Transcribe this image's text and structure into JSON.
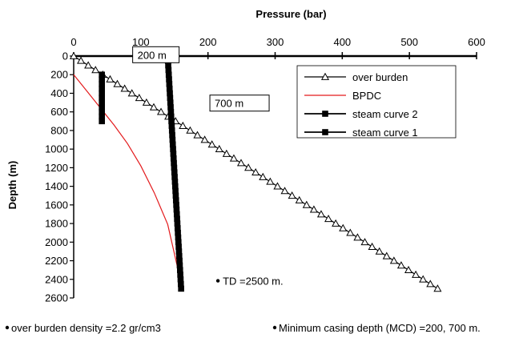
{
  "chart_data": {
    "type": "line",
    "xlabel": "Pressure (bar)",
    "ylabel": "Depth (m)",
    "x_axis_position": "top",
    "y_axis_inverted": true,
    "xlim": [
      0,
      600
    ],
    "ylim": [
      0,
      2600
    ],
    "x_ticks": [
      0,
      100,
      200,
      300,
      400,
      500,
      600
    ],
    "y_ticks": [
      0,
      200,
      400,
      600,
      800,
      1000,
      1200,
      1400,
      1600,
      1800,
      2000,
      2200,
      2400,
      2600
    ],
    "grid": false,
    "legend_position": "top-right",
    "series": [
      {
        "name": "over burden",
        "color": "#000000",
        "marker": "open-triangle",
        "points": [
          [
            0,
            0
          ],
          [
            542,
            2500
          ]
        ]
      },
      {
        "name": "BPDC",
        "color": "#e31a1c",
        "marker": "none",
        "points": [
          [
            0,
            200
          ],
          [
            20,
            380
          ],
          [
            40,
            560
          ],
          [
            60,
            740
          ],
          [
            80,
            940
          ],
          [
            100,
            1180
          ],
          [
            120,
            1470
          ],
          [
            140,
            1810
          ],
          [
            160,
            2440
          ]
        ]
      },
      {
        "name": "steam curve 2",
        "color": "#000000",
        "marker": "filled-square",
        "points": [
          [
            42,
            200
          ],
          [
            42,
            700
          ]
        ]
      },
      {
        "name": "steam curve 1",
        "color": "#000000",
        "marker": "filled-square",
        "points": [
          [
            140,
            0
          ],
          [
            160,
            2500
          ]
        ]
      }
    ],
    "annotations": [
      {
        "text": "200 m",
        "x": 95,
        "y": 20
      },
      {
        "text": "700 m",
        "x": 210,
        "y": 540
      },
      {
        "text": "TD =2500 m.",
        "x": 222,
        "y": 2450
      }
    ],
    "footnotes": [
      "over burden density =2.2 gr/cm3",
      "Minimum casing depth (MCD) =200, 700 m."
    ]
  }
}
